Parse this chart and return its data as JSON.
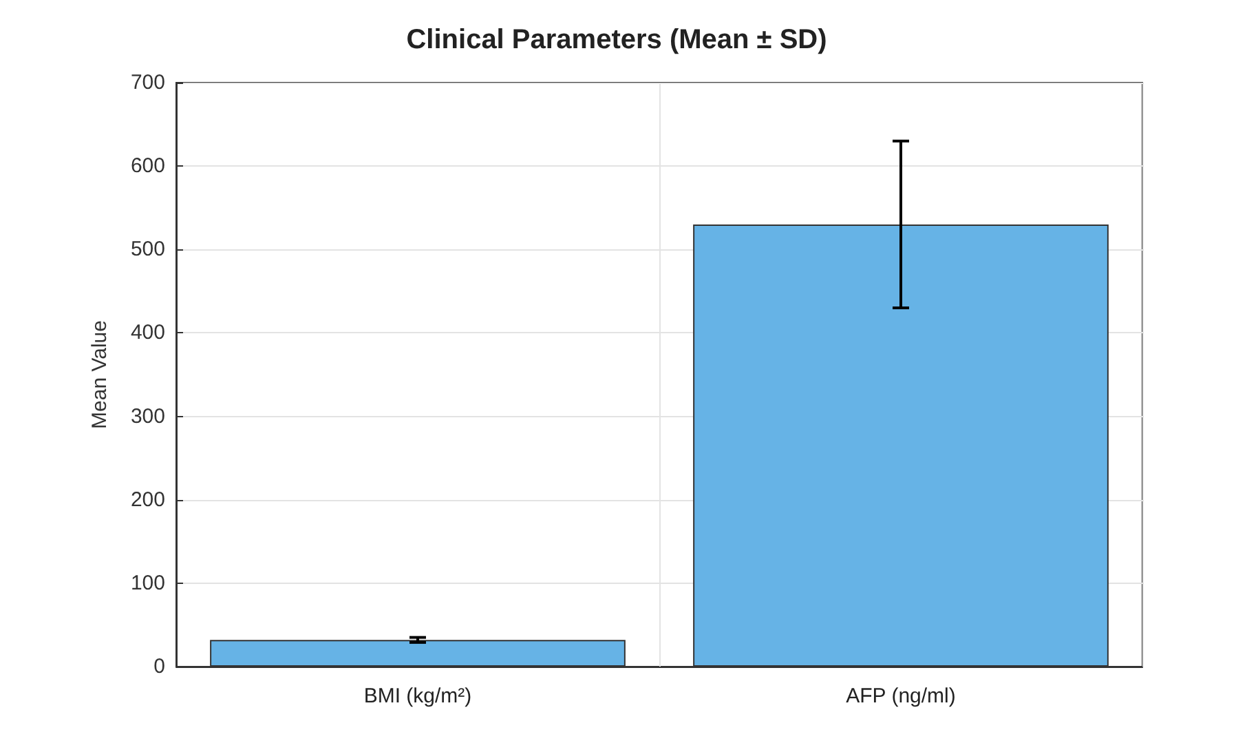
{
  "chart_data": {
    "type": "bar",
    "title": "Clinical Parameters (Mean ± SD)",
    "ylabel": "Mean Value",
    "categories": [
      "BMI (kg/m²)",
      "AFP (ng/ml)"
    ],
    "values": [
      32,
      530
    ],
    "errors": [
      3,
      100
    ],
    "color": "#66b3e6",
    "ylim": [
      0,
      700
    ],
    "yticks": [
      0,
      100,
      200,
      300,
      400,
      500,
      600,
      700
    ],
    "grid": true
  }
}
